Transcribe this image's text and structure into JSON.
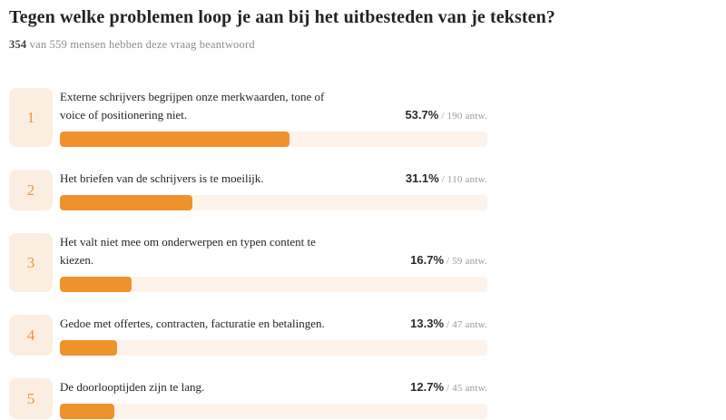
{
  "page": {
    "title": "Tegen welke problemen loop je aan bij het uitbesteden van je teksten?",
    "subtitle_count": "354",
    "subtitle_rest": " van 559 mensen hebben deze vraag beantwoord"
  },
  "colors": {
    "bar_fill": "#f0922c",
    "bar_track": "#fdf3ea",
    "rank_box_bg": "#fbeee0",
    "rank_number": "#e9953f",
    "text_dark": "#242424",
    "text_gray": "#9a9a9a"
  },
  "chart_data": {
    "type": "bar",
    "orientation": "horizontal",
    "title": "Tegen welke problemen loop je aan bij het uitbesteden van je teksten?",
    "subtitle": "354 van 559 mensen hebben deze vraag beantwoord",
    "answered": 354,
    "total_respondents": 559,
    "value_unit": "percent of respondents",
    "xlim": [
      0,
      100
    ],
    "items": [
      {
        "rank": "1",
        "label": "Externe schrijvers begrijpen onze merkwaarden, tone of\nvoice of positionering niet.",
        "percent_label": "53.7%",
        "value": 53.7,
        "answers_label": "/ 190 antw.",
        "count": 190
      },
      {
        "rank": "2",
        "label": "Het briefen van de schrijvers is te moeilijk.",
        "percent_label": "31.1%",
        "value": 31.1,
        "answers_label": "/ 110 antw.",
        "count": 110
      },
      {
        "rank": "3",
        "label": "Het valt niet mee om onderwerpen en typen content te\nkiezen.",
        "percent_label": "16.7%",
        "value": 16.7,
        "answers_label": "/ 59 antw.",
        "count": 59
      },
      {
        "rank": "4",
        "label": "Gedoe met offertes, contracten, facturatie en betalingen.",
        "percent_label": "13.3%",
        "value": 13.3,
        "answers_label": "/ 47 antw.",
        "count": 47
      },
      {
        "rank": "5",
        "label": "De doorlooptijden zijn te lang.",
        "percent_label": "12.7%",
        "value": 12.7,
        "answers_label": "/ 45 antw.",
        "count": 45
      }
    ]
  }
}
